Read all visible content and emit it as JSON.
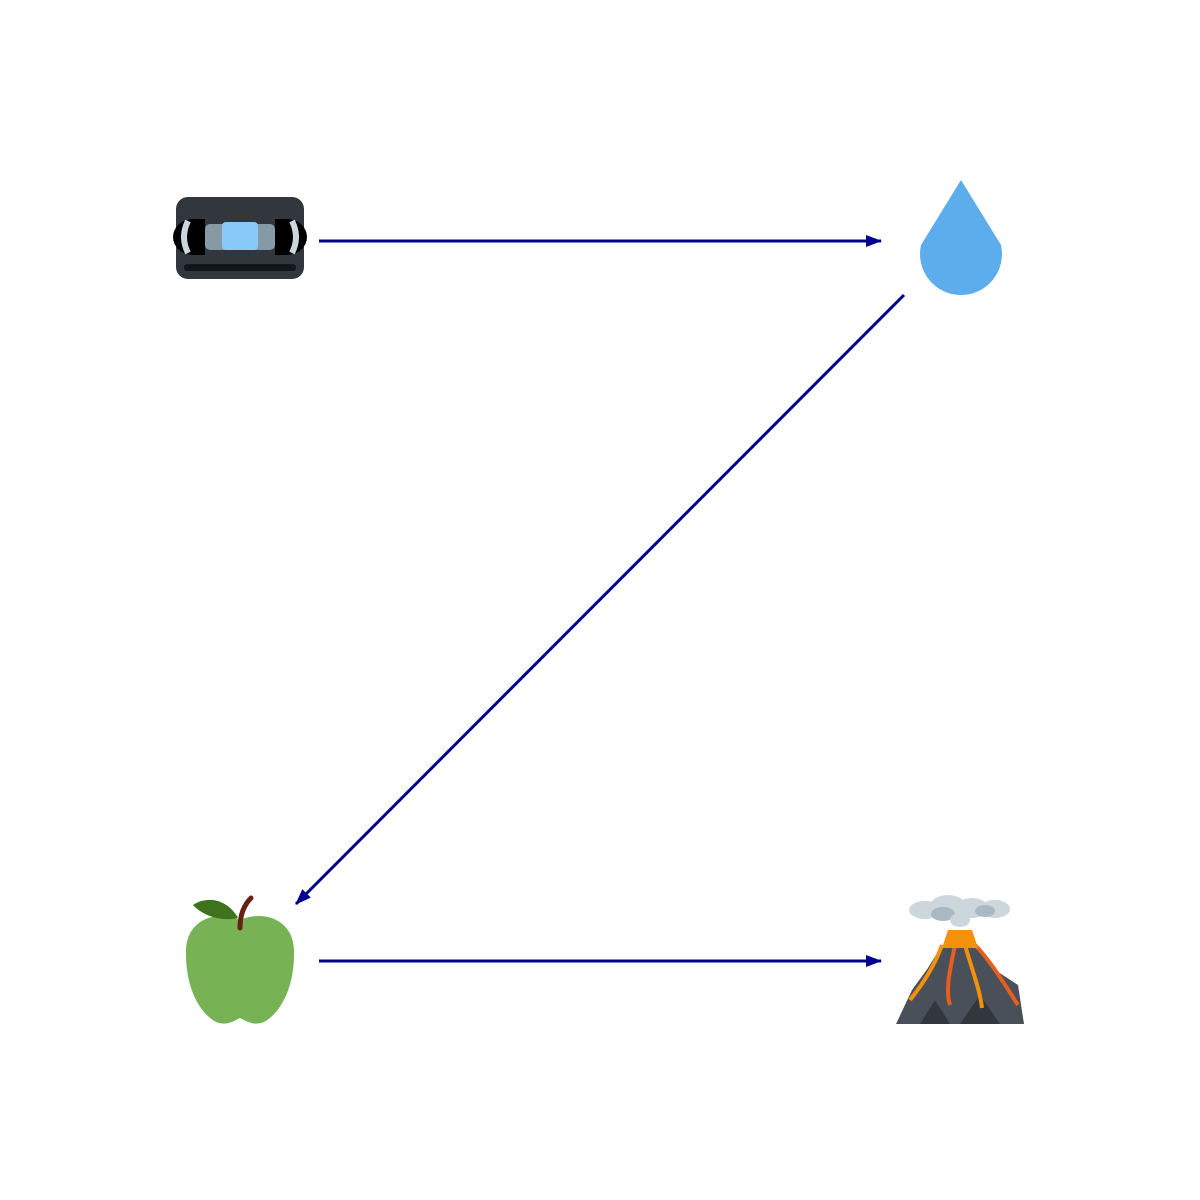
{
  "diagram": {
    "nodes": [
      {
        "id": "videocassette",
        "icon": "videocassette-icon"
      },
      {
        "id": "droplet",
        "icon": "droplet-icon"
      },
      {
        "id": "green-apple",
        "icon": "green-apple-icon"
      },
      {
        "id": "volcano",
        "icon": "volcano-icon"
      }
    ],
    "edges": [
      {
        "from": "videocassette",
        "to": "droplet"
      },
      {
        "from": "droplet",
        "to": "green-apple"
      },
      {
        "from": "green-apple",
        "to": "volcano"
      }
    ],
    "colors": {
      "arrow": "#00008b",
      "cassette_body": "#31373d",
      "cassette_window": "#88c9f9",
      "droplet": "#5dadec",
      "apple": "#77b255",
      "apple_leaf": "#3e721d",
      "apple_stem": "#662113",
      "volcano_rock": "#4a5059",
      "lava": "#f4900c",
      "smoke": "#ccd6dd"
    }
  }
}
